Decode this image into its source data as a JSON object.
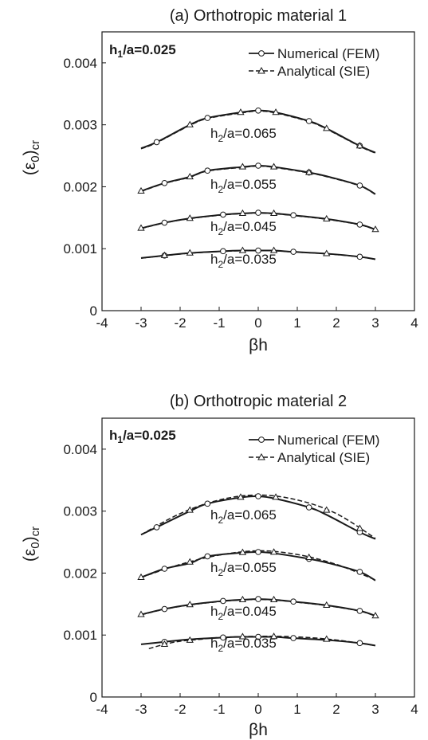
{
  "chart_data": [
    {
      "type": "line",
      "title": "(a) Orthotropic material 1",
      "xlabel": "βh",
      "ylabel": "(ε0)cr",
      "xlim": [
        -4,
        4
      ],
      "ylim": [
        0,
        0.0045
      ],
      "xticks": [
        "-4",
        "-3",
        "-2",
        "-1",
        "0",
        "1",
        "2",
        "3",
        "4"
      ],
      "yticks": [
        "0",
        "0.001",
        "0.002",
        "0.003",
        "0.004"
      ],
      "annotation_h1": "h1/a=0.025",
      "legend": {
        "position": "top-right",
        "numerical": "Numerical (FEM)",
        "analytical": "Analytical (SIE)"
      },
      "curve_labels": [
        "h2/a=0.065",
        "h2/a=0.055",
        "h2/a=0.045",
        "h2/a=0.035"
      ],
      "series": [
        {
          "name": "h2/a=0.065",
          "numerical_x": [
            -3,
            -2.6,
            -1.75,
            -1.3,
            -0.45,
            0,
            0.45,
            1.3,
            1.75,
            2.6,
            3
          ],
          "numerical_y": [
            0.00262,
            0.00272,
            0.003,
            0.00311,
            0.0032,
            0.00323,
            0.0032,
            0.00306,
            0.00294,
            0.00266,
            0.00255
          ],
          "numerical_markers_x": [
            -2.6,
            -1.3,
            0,
            1.3,
            2.6
          ],
          "analytical_markers_x": [
            -1.75,
            -0.45,
            0.45,
            1.75,
            2.6
          ]
        },
        {
          "name": "h2/a=0.055",
          "numerical_x": [
            -3,
            -2.4,
            -1.75,
            -1.3,
            -0.4,
            0,
            0.4,
            1.3,
            1.75,
            2.6,
            3
          ],
          "numerical_y": [
            0.00193,
            0.00206,
            0.00216,
            0.00226,
            0.00232,
            0.00234,
            0.00232,
            0.00223,
            0.00217,
            0.00202,
            0.00188
          ],
          "numerical_markers_x": [
            -2.4,
            -1.3,
            0,
            1.3,
            2.6
          ],
          "analytical_markers_x": [
            -3,
            -1.75,
            -0.4,
            0.4,
            1.3
          ]
        },
        {
          "name": "h2/a=0.045",
          "numerical_x": [
            -3,
            -2.4,
            -1.75,
            -0.9,
            -0.4,
            0,
            0.4,
            0.9,
            1.75,
            2.6,
            3
          ],
          "numerical_y": [
            0.00133,
            0.00142,
            0.00149,
            0.00155,
            0.00157,
            0.00158,
            0.00157,
            0.00154,
            0.00148,
            0.00139,
            0.00131
          ],
          "numerical_markers_x": [
            -2.4,
            -0.9,
            0,
            0.9,
            2.6
          ],
          "analytical_markers_x": [
            -3,
            -1.75,
            -0.4,
            0.4,
            1.75,
            3
          ]
        },
        {
          "name": "h2/a=0.035",
          "numerical_x": [
            -3,
            -2.4,
            -1.75,
            -0.9,
            -0.4,
            0,
            0.4,
            0.9,
            1.75,
            2.6,
            3
          ],
          "numerical_y": [
            0.00085,
            0.00089,
            0.00093,
            0.00096,
            0.00097,
            0.00097,
            0.00097,
            0.00095,
            0.00092,
            0.00087,
            0.00083
          ],
          "numerical_markers_x": [
            -2.4,
            -0.9,
            0,
            0.9,
            2.6
          ],
          "analytical_markers_x": [
            -2.4,
            -1.75,
            -0.4,
            0.4,
            1.75
          ]
        }
      ]
    },
    {
      "type": "line",
      "title": "(b) Orthotropic material 2",
      "xlabel": "βh",
      "ylabel": "(ε0)cr",
      "xlim": [
        -4,
        4
      ],
      "ylim": [
        0,
        0.0045
      ],
      "xticks": [
        "-4",
        "-3",
        "-2",
        "-1",
        "0",
        "1",
        "2",
        "3",
        "4"
      ],
      "yticks": [
        "0",
        "0.001",
        "0.002",
        "0.003",
        "0.004"
      ],
      "annotation_h1": "h1/a=0.025",
      "legend": {
        "position": "top-right",
        "numerical": "Numerical (FEM)",
        "analytical": "Analytical (SIE)"
      },
      "curve_labels": [
        "h2/a=0.065",
        "h2/a=0.055",
        "h2/a=0.045",
        "h2/a=0.035"
      ],
      "series": [
        {
          "name": "h2/a=0.065",
          "numerical_x": [
            -3,
            -2.6,
            -1.75,
            -1.3,
            -0.45,
            0,
            0.45,
            1.3,
            1.75,
            2.6,
            3
          ],
          "numerical_y": [
            0.00262,
            0.00274,
            0.003,
            0.00312,
            0.00322,
            0.00324,
            0.0032,
            0.00306,
            0.00294,
            0.00266,
            0.00255
          ],
          "analytical_dx": [
            -3,
            -2,
            -1,
            0,
            1,
            2,
            3
          ],
          "analytical_dy": [
            0.00262,
            0.00296,
            0.00318,
            0.00326,
            0.00318,
            0.00296,
            0.00256
          ],
          "numerical_markers_x": [
            -2.6,
            -1.3,
            0,
            1.3,
            2.6
          ],
          "analytical_markers_x": [
            -1.75,
            -0.45,
            0.45,
            1.75,
            2.6
          ]
        },
        {
          "name": "h2/a=0.055",
          "numerical_x": [
            -3,
            -2.4,
            -1.75,
            -1.3,
            -0.4,
            0,
            0.4,
            1.3,
            1.75,
            2.6,
            3
          ],
          "numerical_y": [
            0.00193,
            0.00207,
            0.00216,
            0.00227,
            0.00233,
            0.00234,
            0.00232,
            0.00223,
            0.00217,
            0.00202,
            0.00188
          ],
          "analytical_dx": [
            -3,
            -2,
            -1,
            0,
            1,
            2,
            3
          ],
          "analytical_dy": [
            0.00193,
            0.00214,
            0.00229,
            0.00236,
            0.0023,
            0.00214,
            0.00189
          ],
          "numerical_markers_x": [
            -2.4,
            -1.3,
            0,
            1.3,
            2.6
          ],
          "analytical_markers_x": [
            -3,
            -1.75,
            -0.4,
            0.4,
            1.3
          ]
        },
        {
          "name": "h2/a=0.045",
          "numerical_x": [
            -3,
            -2.4,
            -1.75,
            -0.9,
            -0.4,
            0,
            0.4,
            0.9,
            1.75,
            2.6,
            3
          ],
          "numerical_y": [
            0.00133,
            0.00142,
            0.00149,
            0.00155,
            0.00157,
            0.00158,
            0.00157,
            0.00154,
            0.00148,
            0.00139,
            0.00131
          ],
          "numerical_markers_x": [
            -2.4,
            -0.9,
            0,
            0.9,
            2.6
          ],
          "analytical_markers_x": [
            -3,
            -1.75,
            -0.4,
            0.4,
            1.75,
            3
          ]
        },
        {
          "name": "h2/a=0.035",
          "numerical_x": [
            -3,
            -2.4,
            -1.75,
            -0.9,
            -0.4,
            0,
            0.4,
            0.9,
            1.75,
            2.6,
            3
          ],
          "numerical_y": [
            0.00085,
            0.00089,
            0.00093,
            0.00096,
            0.00097,
            0.00097,
            0.00097,
            0.00095,
            0.00092,
            0.00087,
            0.00083
          ],
          "analytical_dx": [
            -2.8,
            -2.4,
            -2,
            -1.5,
            -1,
            0,
            1,
            2,
            3
          ],
          "analytical_dy": [
            0.00078,
            0.00085,
            0.0009,
            0.00093,
            0.00096,
            0.00098,
            0.00097,
            0.00092,
            0.00083
          ],
          "numerical_markers_x": [
            -2.4,
            -0.9,
            0,
            0.9,
            2.6
          ],
          "analytical_markers_x": [
            -2.4,
            -1.75,
            -0.4,
            0.4,
            1.75
          ]
        }
      ]
    }
  ]
}
